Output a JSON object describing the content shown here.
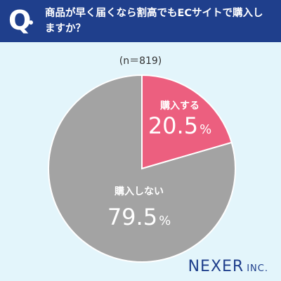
{
  "header": {
    "mark": "Q",
    "question": "商品が早く届くなら割高でもECサイトで購入しますか？"
  },
  "sample": "(n＝819)",
  "colors": {
    "header_bg": "#1f3f8c",
    "background": "#e3f5fb",
    "buy": "#ec5f7f",
    "not_buy": "#a3a3a3"
  },
  "chart_data": {
    "type": "pie",
    "start_angle": "12 o'clock, clockwise",
    "slices": [
      {
        "label": "購入する",
        "value": 20.5,
        "value_text": "20.5",
        "unit": "%",
        "color": "#ec5f7f"
      },
      {
        "label": "購入しない",
        "value": 79.5,
        "value_text": "79.5",
        "unit": "%",
        "color": "#a3a3a3"
      }
    ]
  },
  "brand": {
    "main": "NEXER",
    "sub": "INC."
  }
}
